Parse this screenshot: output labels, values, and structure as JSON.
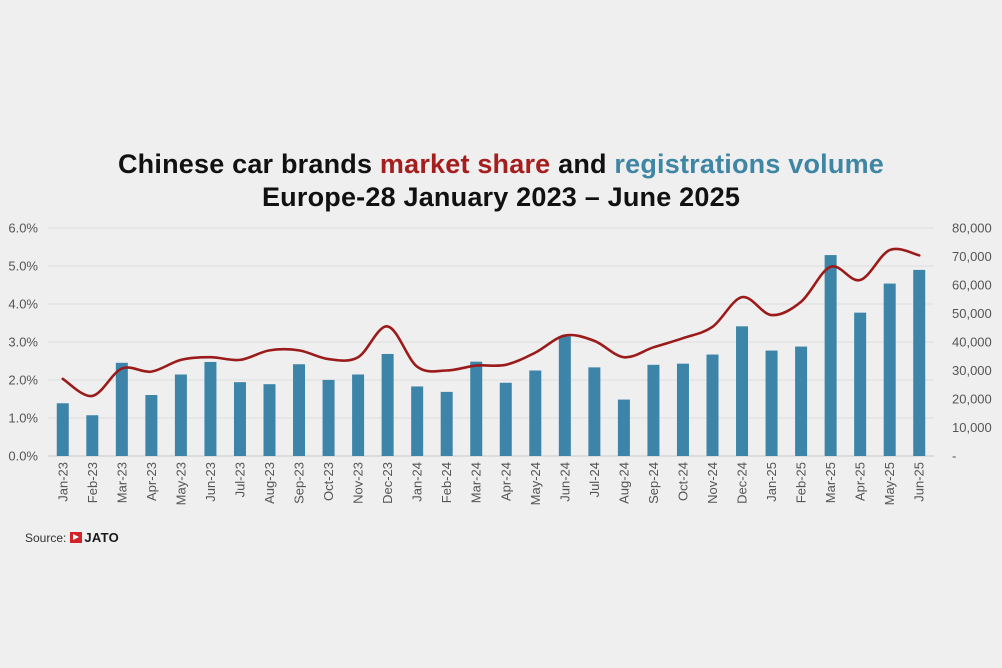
{
  "title": {
    "line1_part1": "Chinese car brands ",
    "line1_part2": "market share",
    "line1_part3": " and ",
    "line1_part4": "registrations volume",
    "line2": "Europe-28 January 2023 – June 2025"
  },
  "colors": {
    "bars": "#3c85a8",
    "line": "#9b1b1b",
    "title_red": "#a51d1d",
    "title_blue": "#3f86a5",
    "grid": "#dcdcdc"
  },
  "source": {
    "label": "Source:",
    "brand": "JATO"
  },
  "chart_data": {
    "type": "bar+line",
    "categories": [
      "Jan-23",
      "Feb-23",
      "Mar-23",
      "Apr-23",
      "May-23",
      "Jun-23",
      "Jul-23",
      "Aug-23",
      "Sep-23",
      "Oct-23",
      "Nov-23",
      "Dec-23",
      "Jan-24",
      "Feb-24",
      "Mar-24",
      "Apr-24",
      "May-24",
      "Jun-24",
      "Jul-24",
      "Aug-24",
      "Sep-24",
      "Oct-24",
      "Nov-24",
      "Dec-24",
      "Jan-25",
      "Feb-25",
      "Mar-25",
      "Apr-25",
      "May-25",
      "Jun-25"
    ],
    "series": [
      {
        "type": "bar",
        "axis": "right",
        "values": [
          18500,
          14300,
          32700,
          21400,
          28600,
          33000,
          25900,
          25200,
          32200,
          26700,
          28600,
          35800,
          24400,
          22500,
          33100,
          25700,
          30000,
          42000,
          31100,
          19800,
          32000,
          32400,
          35600,
          45500,
          37000,
          38400,
          70500,
          50300,
          60500,
          65300
        ]
      },
      {
        "type": "line",
        "axis": "left",
        "values": [
          2.03,
          1.58,
          2.3,
          2.22,
          2.53,
          2.6,
          2.53,
          2.78,
          2.78,
          2.55,
          2.6,
          3.41,
          2.35,
          2.25,
          2.38,
          2.4,
          2.72,
          3.17,
          3.03,
          2.6,
          2.86,
          3.1,
          3.4,
          4.18,
          3.71,
          4.06,
          4.98,
          4.63,
          5.42,
          5.28
        ]
      }
    ],
    "y_left": {
      "ticks": [
        "0.0%",
        "1.0%",
        "2.0%",
        "3.0%",
        "4.0%",
        "5.0%",
        "6.0%"
      ],
      "range": [
        0,
        6
      ]
    },
    "y_right": {
      "ticks": [
        "-",
        "10,000",
        "20,000",
        "30,000",
        "40,000",
        "50,000",
        "60,000",
        "70,000",
        "80,000"
      ],
      "range": [
        0,
        80000
      ]
    },
    "grid": true
  }
}
